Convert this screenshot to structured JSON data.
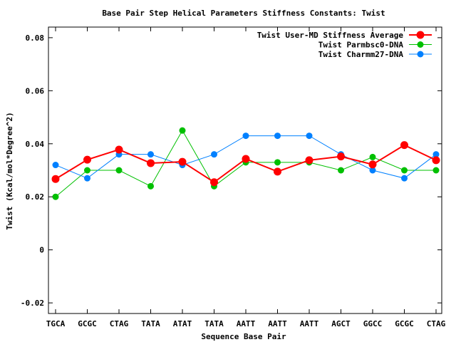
{
  "chart_data": {
    "type": "line",
    "title": "Base Pair Step Helical Parameters Stiffness Constants: Twist",
    "xlabel": "Sequence Base Pair",
    "ylabel": "Twist (Kcal/mol*Degree^2)",
    "categories": [
      "TGCA",
      "GCGC",
      "CTAG",
      "TATA",
      "ATAT",
      "TATA",
      "AATT",
      "AATT",
      "AATT",
      "AGCT",
      "GGCC",
      "GCGC",
      "CTAG"
    ],
    "ylim": [
      -0.024,
      0.084
    ],
    "yticks": [
      -0.02,
      0,
      0.02,
      0.04,
      0.06,
      0.08
    ],
    "ytick_labels": [
      "-0.02",
      "0",
      "0.02",
      "0.04",
      "0.06",
      "0.08"
    ],
    "legend_position": "top-right",
    "grid": false,
    "series": [
      {
        "name": "Twist User-MD Stiffness Average",
        "color": "#ff0000",
        "values": [
          0.0267,
          0.034,
          0.0378,
          0.0327,
          0.0332,
          0.0255,
          0.0343,
          0.0295,
          0.0338,
          0.0352,
          0.0322,
          0.0395,
          0.0338
        ]
      },
      {
        "name": "Twist Parmbsc0-DNA",
        "color": "#00c000",
        "values": [
          0.02,
          0.03,
          0.03,
          0.024,
          0.045,
          0.024,
          0.033,
          0.033,
          0.033,
          0.03,
          0.035,
          0.03,
          0.03
        ]
      },
      {
        "name": "Twist Charmm27-DNA",
        "color": "#0080ff",
        "values": [
          0.032,
          0.027,
          0.036,
          0.036,
          0.032,
          0.036,
          0.043,
          0.043,
          0.043,
          0.036,
          0.03,
          0.027,
          0.036
        ]
      }
    ]
  }
}
